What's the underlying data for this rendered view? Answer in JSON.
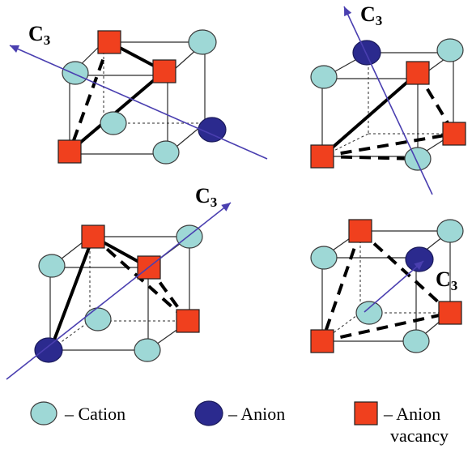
{
  "axis_label": {
    "main": "C",
    "sub": "3"
  },
  "colors": {
    "cation": "#9ed8d6",
    "anion": "#2b2a8e",
    "vacancy": "#f0401e",
    "axis": "#4a3fb0"
  },
  "legend": {
    "cation": "– Cation",
    "anion": "– Anion",
    "vacancy_line1": "– Anion",
    "vacancy_line2": "vacancy"
  }
}
